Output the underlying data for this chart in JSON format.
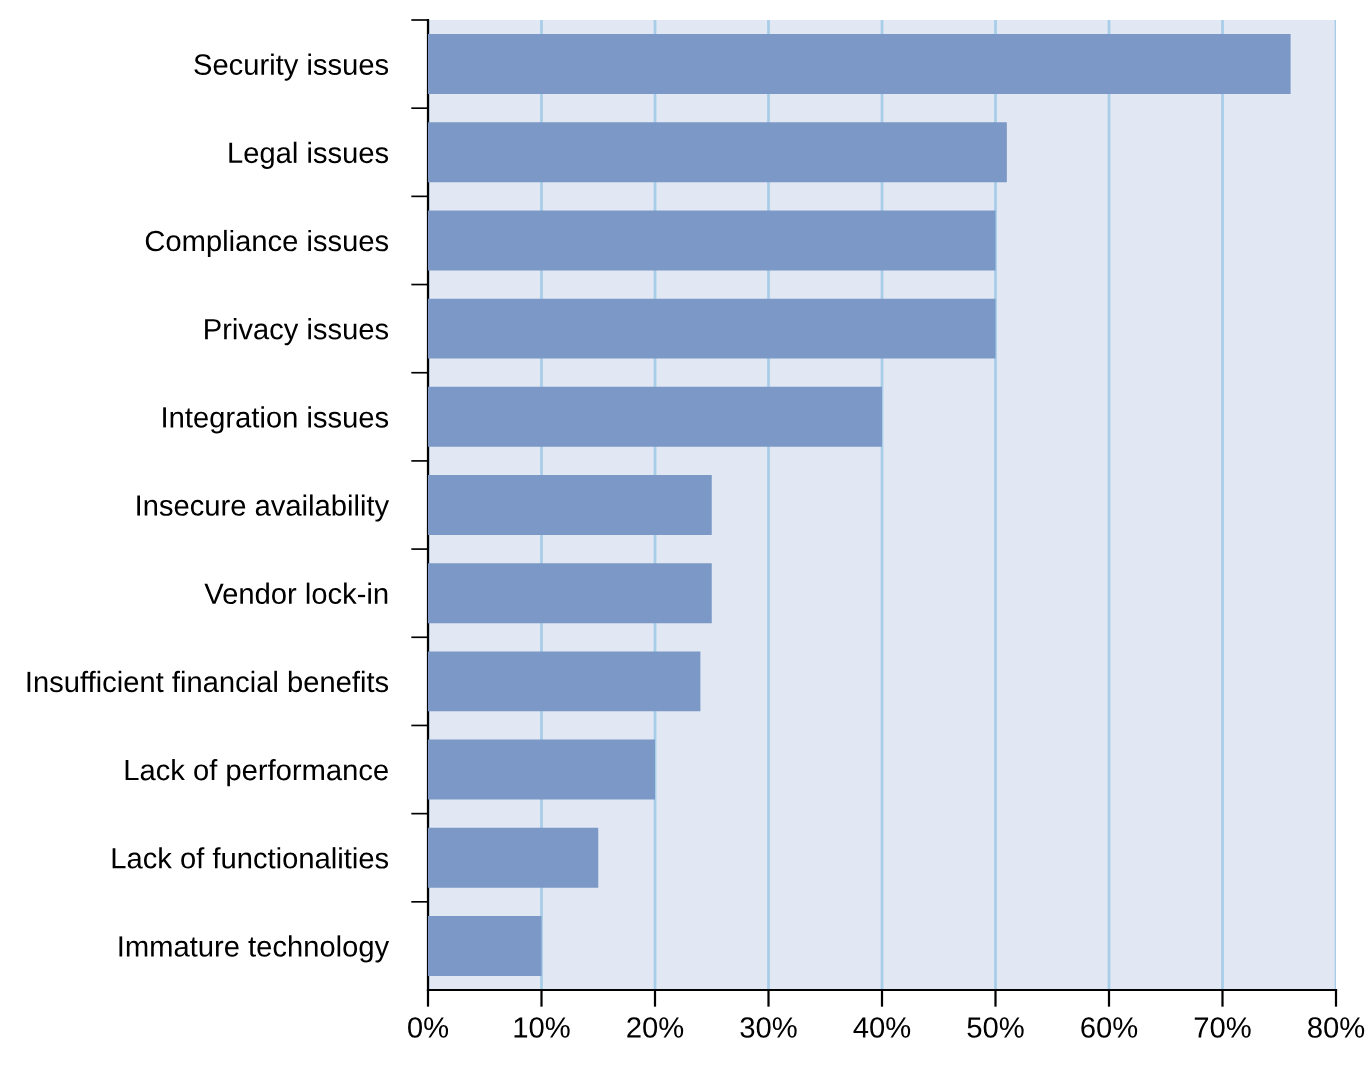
{
  "chart_data": {
    "type": "bar",
    "orientation": "horizontal",
    "categories": [
      "Security issues",
      "Legal issues",
      "Compliance issues",
      "Privacy issues",
      "Integration issues",
      "Insecure availability",
      "Vendor lock-in",
      "Insufficient financial benefits",
      "Lack of performance",
      "Lack of functionalities",
      "Immature technology"
    ],
    "values": [
      76,
      51,
      50,
      50,
      40,
      25,
      25,
      24,
      20,
      15,
      10
    ],
    "color": "#7b98c6",
    "xlim": [
      0,
      80
    ],
    "xticks": [
      {
        "value": 0,
        "label": "0%"
      },
      {
        "value": 10,
        "label": "10%"
      },
      {
        "value": 20,
        "label": "20%"
      },
      {
        "value": 30,
        "label": "30%"
      },
      {
        "value": 40,
        "label": "40%"
      },
      {
        "value": 50,
        "label": "50%"
      },
      {
        "value": 60,
        "label": "60%"
      },
      {
        "value": 70,
        "label": "70%"
      },
      {
        "value": 80,
        "label": "80%"
      }
    ],
    "grid": "x",
    "legend": false
  }
}
